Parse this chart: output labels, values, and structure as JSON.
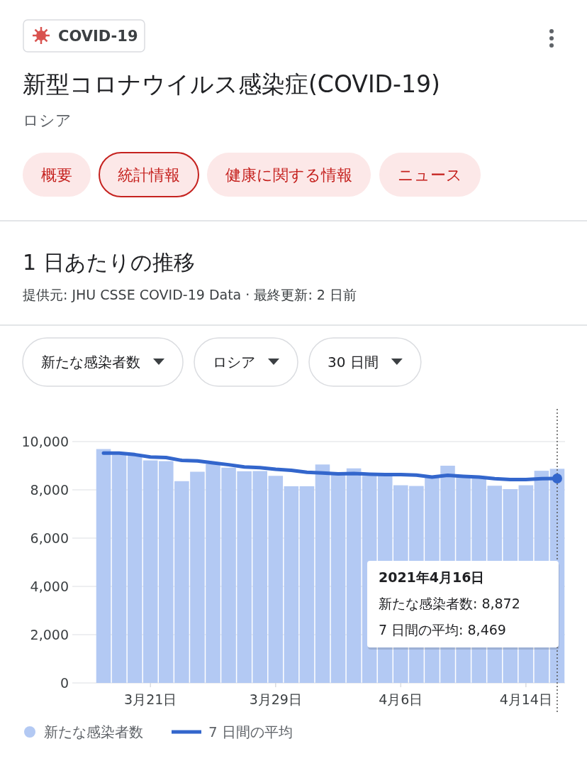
{
  "chart_data": {
    "type": "bar",
    "title": "新型コロナウイルス感染症(COVID-19)",
    "subtitle": "ロシア",
    "x": [
      "2021-03-18",
      "2021-03-19",
      "2021-03-20",
      "2021-03-21",
      "2021-03-22",
      "2021-03-23",
      "2021-03-24",
      "2021-03-25",
      "2021-03-26",
      "2021-03-27",
      "2021-03-28",
      "2021-03-29",
      "2021-03-30",
      "2021-03-31",
      "2021-04-01",
      "2021-04-02",
      "2021-04-03",
      "2021-04-04",
      "2021-04-05",
      "2021-04-06",
      "2021-04-07",
      "2021-04-08",
      "2021-04-09",
      "2021-04-10",
      "2021-04-11",
      "2021-04-12",
      "2021-04-13",
      "2021-04-14",
      "2021-04-15",
      "2021-04-16"
    ],
    "series": [
      {
        "name": "新たな感染者数",
        "color": "#b3c9f3",
        "values": [
          9690,
          9460,
          9410,
          9220,
          9190,
          8360,
          8750,
          9070,
          8920,
          8770,
          8780,
          8580,
          8150,
          8150,
          9050,
          8680,
          8890,
          8580,
          8580,
          8190,
          8160,
          8560,
          9000,
          8530,
          8480,
          8170,
          8030,
          8190,
          8790,
          8872
        ]
      },
      {
        "name": "7 日間の平均",
        "type": "line",
        "color": "#3366cc",
        "values": [
          9520,
          9520,
          9460,
          9360,
          9340,
          9220,
          9200,
          9120,
          9040,
          8950,
          8920,
          8850,
          8810,
          8730,
          8700,
          8660,
          8680,
          8650,
          8630,
          8630,
          8610,
          8530,
          8600,
          8560,
          8530,
          8460,
          8430,
          8430,
          8460,
          8469
        ]
      }
    ],
    "xlim": [
      "2021-03-17T12:00",
      "2021-04-16T12:00"
    ],
    "xticks": [
      {
        "value": "2021-03-21",
        "label": "3月21日"
      },
      {
        "value": "2021-03-29",
        "label": "3月29日"
      },
      {
        "value": "2021-04-06",
        "label": "4月6日"
      },
      {
        "value": "2021-04-14",
        "label": "4月14日"
      }
    ],
    "ylim": [
      0,
      10000
    ],
    "yticks": [
      0,
      {
        "value": 2000,
        "label": "2,000"
      },
      {
        "value": 4000,
        "label": "4,000"
      },
      {
        "value": 6000,
        "label": "6,000"
      },
      {
        "value": 8000,
        "label": "8,000"
      },
      {
        "value": 10000,
        "label": "10,000"
      }
    ],
    "grid": "y",
    "legend": "bottom",
    "ref_lines": [
      {
        "axis": "x",
        "value": "2021-04-16",
        "line_style": "dotted",
        "color": "#555555"
      }
    ],
    "annotations": [
      "COVID-19",
      "概要",
      "統計情報",
      "健康に関する情報",
      "ニュース",
      "1 日あたりの推移",
      "提供元: JHU CSSE COVID-19 Data · 最終更新: 2 日前",
      "新たな感染者数",
      "ロシア",
      "30 日間",
      "2021年4月16日",
      "新たな感染者数: 8,872",
      "7 日間の平均: 8,469"
    ]
  }
}
